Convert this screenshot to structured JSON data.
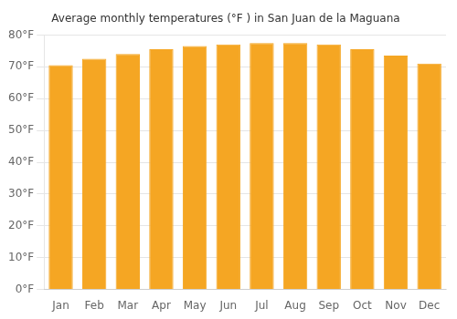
{
  "chart_data": {
    "type": "bar",
    "title": "Average monthly temperatures (°F ) in San Juan de la Maguana",
    "categories": [
      "Jan",
      "Feb",
      "Mar",
      "Apr",
      "May",
      "Jun",
      "Jul",
      "Aug",
      "Sep",
      "Oct",
      "Nov",
      "Dec"
    ],
    "values": [
      70.5,
      72.5,
      74.0,
      75.5,
      76.5,
      77.0,
      77.5,
      77.5,
      77.0,
      75.5,
      73.5,
      71.0
    ],
    "color": "#F5A623",
    "ylim": [
      0,
      80
    ],
    "yticks": [
      {
        "value": 0,
        "label": "0°F"
      },
      {
        "value": 10,
        "label": "10°F"
      },
      {
        "value": 20,
        "label": "20°F"
      },
      {
        "value": 30,
        "label": "30°F"
      },
      {
        "value": 40,
        "label": "40°F"
      },
      {
        "value": 50,
        "label": "50°F"
      },
      {
        "value": 60,
        "label": "60°F"
      },
      {
        "value": 70,
        "label": "70°F"
      },
      {
        "value": 80,
        "label": "80°F"
      }
    ],
    "grid": true
  }
}
